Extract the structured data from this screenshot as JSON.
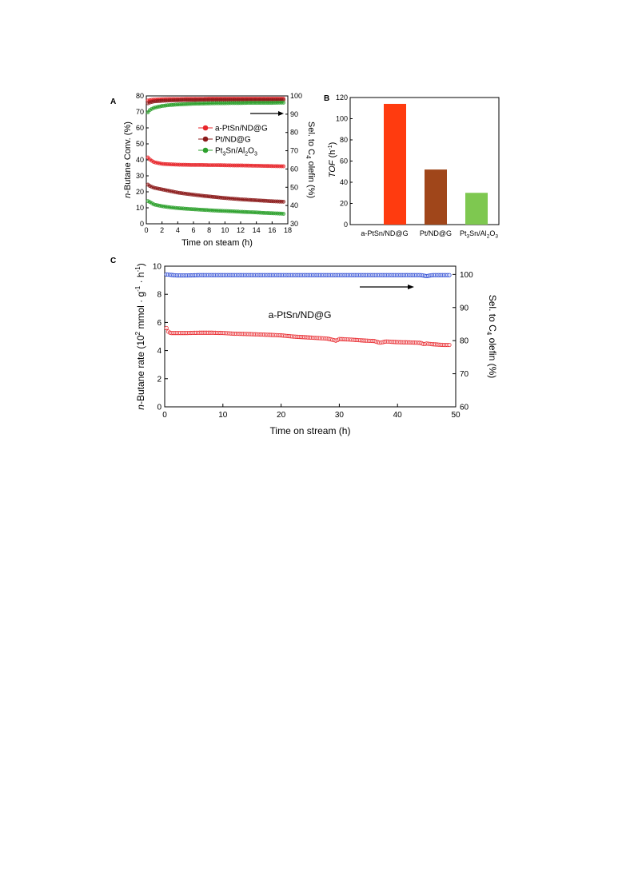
{
  "chart_data": [
    {
      "panel": "A",
      "type": "scatter",
      "xlabel": "Time on steam (h)",
      "ylabel": "n-Butane Conv. (%)",
      "y2label": "Sel. to C4 olefin (%)",
      "xlim": [
        0,
        18
      ],
      "ylim": [
        0,
        80
      ],
      "y2lim": [
        30,
        100
      ],
      "xticks": [
        "0",
        "2",
        "4",
        "6",
        "8",
        "10",
        "12",
        "14",
        "16",
        "18"
      ],
      "yticks": [
        "0",
        "10",
        "20",
        "30",
        "40",
        "50",
        "60",
        "70",
        "80"
      ],
      "y2ticks": [
        "30",
        "40",
        "50",
        "60",
        "70",
        "80",
        "90",
        "100"
      ],
      "arrow_direction": "right-axis",
      "series": [
        {
          "name": "a-PtSn/ND@G",
          "color": "#e8262b",
          "axis": "conversion",
          "x": [
            0.2,
            0.5,
            1,
            2,
            3,
            4,
            5,
            6,
            7,
            8,
            9,
            10,
            11,
            12,
            13,
            14,
            15,
            16,
            17,
            17.6
          ],
          "values": [
            41.5,
            40,
            38.5,
            37.5,
            37.2,
            37,
            36.9,
            36.8,
            36.8,
            36.7,
            36.7,
            36.6,
            36.5,
            36.5,
            36.4,
            36.3,
            36.2,
            36.1,
            36,
            36
          ]
        },
        {
          "name": "Pt/ND@G",
          "color": "#8b1a1a",
          "axis": "conversion",
          "x": [
            0.2,
            0.5,
            1,
            2,
            3,
            4,
            5,
            6,
            7,
            8,
            9,
            10,
            11,
            12,
            13,
            14,
            15,
            16,
            17,
            17.6
          ],
          "values": [
            24.5,
            23.5,
            22.5,
            21.5,
            20.5,
            19.5,
            18.8,
            18.2,
            17.6,
            17.1,
            16.6,
            16.1,
            15.7,
            15.3,
            15,
            14.7,
            14.4,
            14.1,
            13.9,
            13.8
          ]
        },
        {
          "name": "Pt3Sn/Al2O3",
          "color": "#2ca02c",
          "axis": "conversion",
          "x": [
            0.2,
            0.5,
            1,
            2,
            3,
            4,
            5,
            6,
            7,
            8,
            9,
            10,
            11,
            12,
            13,
            14,
            15,
            16,
            17,
            17.6
          ],
          "values": [
            14.2,
            13.5,
            12,
            11,
            10.3,
            9.8,
            9.4,
            9.1,
            8.8,
            8.5,
            8.2,
            8,
            7.8,
            7.5,
            7.3,
            7.1,
            6.8,
            6.6,
            6.4,
            6.2
          ]
        },
        {
          "name": "a-PtSn/ND@G",
          "color": "#e8262b",
          "axis": "selectivity",
          "x": [
            0.2,
            0.5,
            1,
            2,
            3,
            4,
            5,
            6,
            7,
            8,
            9,
            10,
            11,
            12,
            13,
            14,
            15,
            16,
            17,
            17.6
          ],
          "values": [
            97.5,
            97.8,
            98,
            98.2,
            98.3,
            98.3,
            98.4,
            98.4,
            98.4,
            98.5,
            98.5,
            98.5,
            98.5,
            98.5,
            98.5,
            98.5,
            98.5,
            98.5,
            98.5,
            98.5
          ]
        },
        {
          "name": "Pt/ND@G",
          "color": "#8b1a1a",
          "axis": "selectivity",
          "x": [
            0.2,
            0.5,
            1,
            2,
            3,
            4,
            5,
            6,
            7,
            8,
            9,
            10,
            11,
            12,
            13,
            14,
            15,
            16,
            17,
            17.6
          ],
          "values": [
            96,
            96.5,
            97,
            97.3,
            97.5,
            97.6,
            97.7,
            97.7,
            97.8,
            97.8,
            97.8,
            97.8,
            97.8,
            97.8,
            97.8,
            97.8,
            97.8,
            97.8,
            97.8,
            97.8
          ]
        },
        {
          "name": "Pt3Sn/Al2O3",
          "color": "#2ca02c",
          "axis": "selectivity",
          "x": [
            0.2,
            0.5,
            1,
            2,
            3,
            4,
            5,
            6,
            7,
            8,
            9,
            10,
            11,
            12,
            13,
            14,
            15,
            16,
            17,
            17.6
          ],
          "values": [
            91,
            92.5,
            93.5,
            94.5,
            95,
            95.3,
            95.5,
            95.7,
            95.8,
            95.9,
            96,
            96,
            96.1,
            96.1,
            96.2,
            96.2,
            96.2,
            96.2,
            96.3,
            96.3
          ]
        }
      ],
      "legend": [
        {
          "label": "a-PtSn/ND@G",
          "color": "#e8262b"
        },
        {
          "label": "Pt/ND@G",
          "color": "#8b1a1a"
        },
        {
          "label": "Pt3Sn/Al2O3",
          "label_base": "Pt",
          "label_sub1": "3",
          "label_mid": "Sn/Al",
          "label_sub2": "2",
          "label_mid2": "O",
          "label_sub3": "3",
          "color": "#2ca02c"
        }
      ]
    },
    {
      "panel": "B",
      "type": "bar",
      "ylabel": "TOF (h-1)",
      "ylabel_main": "TOF",
      "ylabel_unit_open": "(h",
      "ylabel_unit_sup": "-1",
      "ylabel_unit_close": ")",
      "ylim": [
        0,
        120
      ],
      "yticks": [
        "0",
        "20",
        "40",
        "60",
        "80",
        "100",
        "120"
      ],
      "categories": [
        "a-PtSn/ND@G",
        "Pt/ND@G",
        "Pt3Sn/Al2O3"
      ],
      "category_parts": {
        "base": "Pt",
        "sub1": "3",
        "mid": "Sn/Al",
        "sub2": "2",
        "mid2": "O",
        "sub3": "3"
      },
      "values": [
        114,
        52,
        30
      ],
      "colors": [
        "#ff3b0f",
        "#a0461a",
        "#7ec850"
      ]
    },
    {
      "panel": "C",
      "type": "scatter",
      "xlabel": "Time on stream (h)",
      "ylabel": "n-Butane rate (10^2 mmol · g^-1 · h^-1)",
      "y2label": "Sel. to C4 olefin (%)",
      "xlim": [
        0,
        50
      ],
      "ylim": [
        0,
        10
      ],
      "y2lim": [
        60,
        102.5
      ],
      "xticks": [
        "0",
        "10",
        "20",
        "30",
        "40",
        "50"
      ],
      "yticks": [
        "0",
        "2",
        "4",
        "6",
        "8",
        "10"
      ],
      "y2ticks": [
        "60",
        "70",
        "80",
        "90",
        "100"
      ],
      "annotation": "a-PtSn/ND@G",
      "series": [
        {
          "name": "rate",
          "color": "#e8262b",
          "axis": "rate",
          "x": [
            0.3,
            0.6,
            1,
            2,
            4,
            6,
            8,
            10,
            12,
            14,
            16,
            18,
            20,
            22,
            24,
            26,
            28,
            29.5,
            30,
            32,
            34,
            36,
            37,
            38,
            40,
            42,
            44,
            44.5,
            45,
            46,
            48,
            49
          ],
          "values": [
            5.6,
            5.35,
            5.25,
            5.25,
            5.25,
            5.27,
            5.27,
            5.25,
            5.2,
            5.18,
            5.15,
            5.12,
            5.08,
            5.0,
            4.95,
            4.9,
            4.85,
            4.7,
            4.82,
            4.78,
            4.72,
            4.68,
            4.55,
            4.65,
            4.6,
            4.58,
            4.55,
            4.45,
            4.5,
            4.45,
            4.4,
            4.4
          ]
        },
        {
          "name": "selectivity",
          "color": "#1f3fd0",
          "axis": "selectivity",
          "x": [
            0.3,
            2,
            4,
            6,
            8,
            10,
            12,
            14,
            16,
            18,
            20,
            22,
            24,
            26,
            28,
            30,
            32,
            34,
            36,
            38,
            40,
            42,
            44,
            45,
            46,
            48,
            49
          ],
          "values": [
            100,
            99.7,
            99.7,
            99.8,
            99.8,
            99.8,
            99.8,
            99.8,
            99.8,
            99.8,
            99.8,
            99.8,
            99.8,
            99.8,
            99.8,
            99.8,
            99.8,
            99.8,
            99.8,
            99.8,
            99.8,
            99.8,
            99.8,
            99.5,
            99.8,
            99.8,
            99.8
          ]
        }
      ]
    }
  ],
  "labels": {
    "panel_a": "A",
    "panel_b": "B",
    "panel_c": "C",
    "a_xlabel": "Time on steam (h)",
    "a_ylabel_italic": "n",
    "a_ylabel_rest": "-Butane Conv. (%)",
    "a_y2label_pre": "Sel. to C",
    "a_y2label_sub": "4",
    "a_y2label_post": " olefin (%)",
    "b_ylabel_italic": "TOF",
    "b_ylabel_open": " (h",
    "b_ylabel_sup": "-1",
    "b_ylabel_close": ")",
    "c_xlabel": "Time on stream (h)",
    "c_ylabel_italic": "n",
    "c_ylabel_1": "-Butane rate (10",
    "c_ylabel_sup1": "2",
    "c_ylabel_2": " mmol · g",
    "c_ylabel_sup2": "-1",
    "c_ylabel_3": " · h",
    "c_ylabel_sup3": "-1",
    "c_ylabel_4": ")",
    "c_y2label_pre": "Sel. to C",
    "c_y2label_sub": "4",
    "c_y2label_post": " olefin (%)",
    "c_annotation": "a-PtSn/ND@G"
  }
}
